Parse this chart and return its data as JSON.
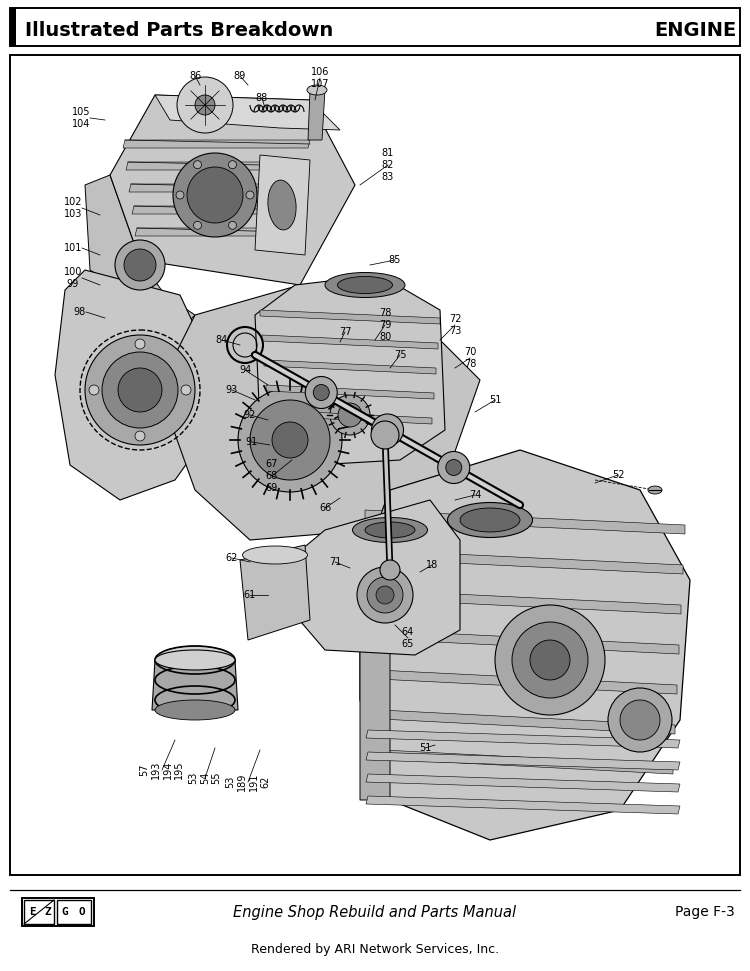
{
  "title_left": "Illustrated Parts Breakdown",
  "title_right": "ENGINE",
  "footer_center": "Engine Shop Rebuild and Parts Manual",
  "footer_right": "Page F-3",
  "footer_bottom": "Rendered by ARI Network Services, Inc.",
  "bg_color": "#ffffff",
  "fig_width": 7.5,
  "fig_height": 9.71,
  "dpi": 100
}
